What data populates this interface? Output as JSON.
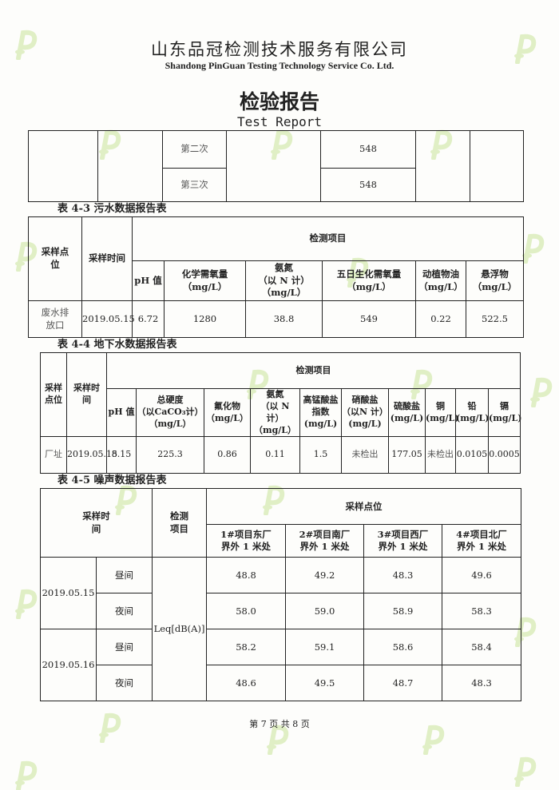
{
  "header": {
    "company_cn": "山东品冠检测技术服务有限公司",
    "company_en": "Shandong PinGuan Testing Technology Service Co. Ltd.",
    "title": "检验报告",
    "subtitle": "Test Report"
  },
  "cont_table": {
    "rows": [
      {
        "label": "第二次",
        "value": "548"
      },
      {
        "label": "第三次",
        "value": "548"
      }
    ]
  },
  "t43": {
    "caption": "表 4-3 污水数据报告表",
    "h_site": "采样点位",
    "h_time": "采样时间",
    "h_items": "检测项目",
    "cols": [
      "pH 值",
      "化学需氧量\n（mg/L）",
      "氨氮\n（以 N 计）\n（mg/L）",
      "五日生化需氧量\n（mg/L）",
      "动植物油\n（mg/L）",
      "悬浮物\n（mg/L）"
    ],
    "row": {
      "site": "废水排放口",
      "time": "2019.05.15",
      "values": [
        "6.72",
        "1280",
        "38.8",
        "549",
        "0.22",
        "522.5"
      ]
    }
  },
  "t44": {
    "caption": "表 4-4 地下水数据报告表",
    "h_site": "采样点位",
    "h_time": "采样时间",
    "h_items": "检测项目",
    "cols": [
      "pH 值",
      "总硬度\n（以CaCO₃计）\n（mg/L）",
      "氟化物\n（mg/L）",
      "氨氮\n（以 N 计）\n（mg/L）",
      "高锰酸盐\n指数\n(mg/L)",
      "硝酸盐\n（以N 计）\n(mg/L)",
      "硫酸盐\n(mg/L)",
      "铜\n(mg/L)",
      "铅\n(mg/L)",
      "镉\n(mg/L)"
    ],
    "row": {
      "site": "厂址",
      "time": "2019.05.15",
      "values": [
        "8.15",
        "225.3",
        "0.86",
        "0.11",
        "1.5",
        "未检出",
        "177.05",
        "未检出",
        "0.0105",
        "0.0005"
      ]
    }
  },
  "t45": {
    "caption": "表 4-5 噪声数据报告表",
    "h_time": "采样时间",
    "h_item": "检测项目",
    "h_points": "采样点位",
    "item": "Leq[dB(A)]",
    "points": [
      "1#项目东厂界外 1 米处",
      "2#项目南厂界外 1 米处",
      "3#项目西厂界外 1 米处",
      "4#项目北厂界外 1 米处"
    ],
    "rows": [
      {
        "date": "2019.05.15",
        "period": "昼间",
        "values": [
          "48.8",
          "49.2",
          "48.3",
          "49.6"
        ]
      },
      {
        "period": "夜间",
        "values": [
          "58.0",
          "59.0",
          "58.9",
          "58.3"
        ]
      },
      {
        "date": "2019.05.16",
        "period": "昼间",
        "values": [
          "58.2",
          "59.1",
          "58.6",
          "58.4"
        ]
      },
      {
        "period": "夜间",
        "values": [
          "48.6",
          "49.5",
          "48.7",
          "48.3"
        ]
      }
    ]
  },
  "footer": {
    "page": "第 7 页 共 8 页"
  },
  "watermark_color": "#d9ecb8"
}
